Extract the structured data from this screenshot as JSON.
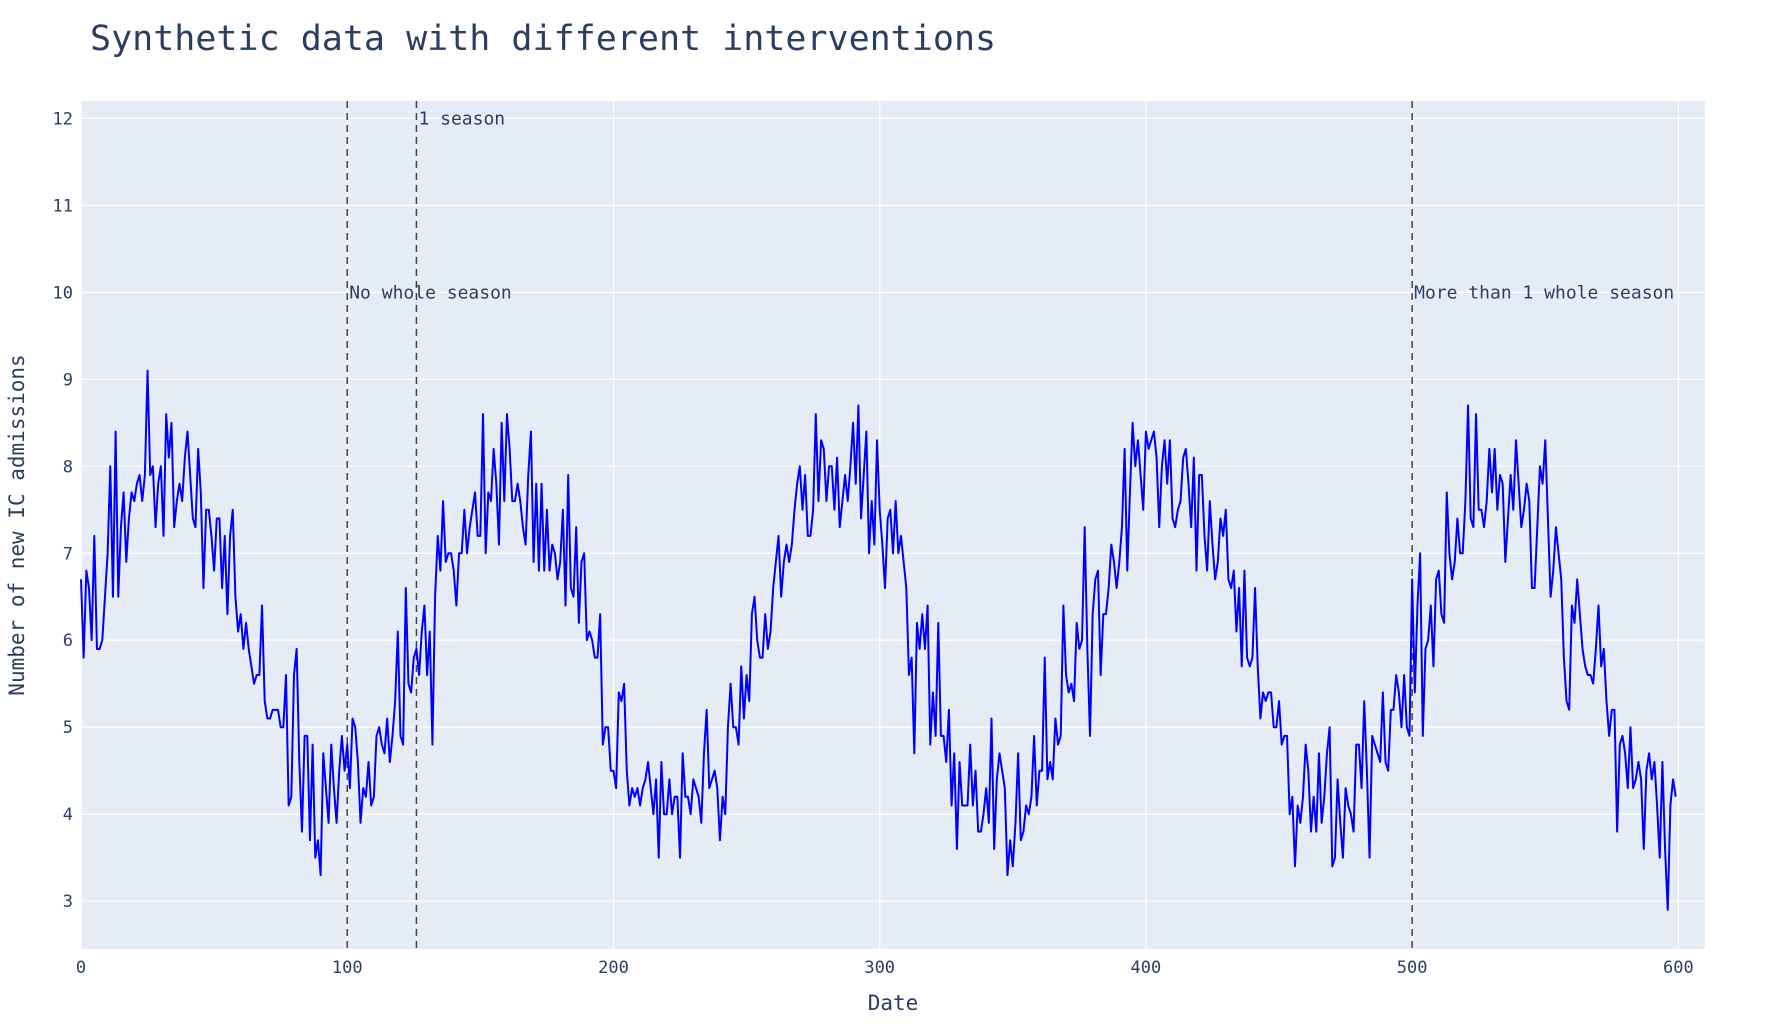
{
  "chart_data": {
    "type": "line",
    "title": "Synthetic data with different interventions",
    "xlabel": "Date",
    "ylabel": "Number of new IC admissions",
    "xlim": [
      0,
      610
    ],
    "ylim": [
      2.45,
      12.2
    ],
    "x_ticks": [
      0,
      100,
      200,
      300,
      400,
      500,
      600
    ],
    "y_ticks": [
      3,
      4,
      5,
      6,
      7,
      8,
      9,
      10,
      11,
      12
    ],
    "grid": true,
    "legend": "none",
    "series": [
      {
        "color": "#0000ff",
        "x_start": 0,
        "x_step": 1,
        "values": [
          6.7,
          5.8,
          6.8,
          6.6,
          6.0,
          7.2,
          5.9,
          5.9,
          6.0,
          6.5,
          7.0,
          8.0,
          6.5,
          8.4,
          6.5,
          7.3,
          7.7,
          6.9,
          7.4,
          7.7,
          7.6,
          7.8,
          7.9,
          7.6,
          7.9,
          9.1,
          7.9,
          8.0,
          7.3,
          7.8,
          8.0,
          7.2,
          8.6,
          8.1,
          8.5,
          7.3,
          7.6,
          7.8,
          7.6,
          8.1,
          8.4,
          7.9,
          7.4,
          7.3,
          8.2,
          7.7,
          6.6,
          7.5,
          7.5,
          7.2,
          6.8,
          7.4,
          7.4,
          6.6,
          7.2,
          6.3,
          7.2,
          7.5,
          6.5,
          6.1,
          6.3,
          5.9,
          6.2,
          5.9,
          5.7,
          5.5,
          5.6,
          5.6,
          6.4,
          5.3,
          5.1,
          5.1,
          5.2,
          5.2,
          5.2,
          5.0,
          5.0,
          5.6,
          4.1,
          4.2,
          5.6,
          5.9,
          4.6,
          3.8,
          4.9,
          4.9,
          3.7,
          4.8,
          3.5,
          3.7,
          3.3,
          4.7,
          4.3,
          3.9,
          4.8,
          4.3,
          3.9,
          4.5,
          4.9,
          4.5,
          4.8,
          4.3,
          5.1,
          5.0,
          4.6,
          3.9,
          4.3,
          4.2,
          4.6,
          4.1,
          4.2,
          4.9,
          5.0,
          4.8,
          4.7,
          5.1,
          4.6,
          4.9,
          5.3,
          6.1,
          4.9,
          4.8,
          6.6,
          5.5,
          5.4,
          5.8,
          5.9,
          5.6,
          6.1,
          6.4,
          5.6,
          6.1,
          4.8,
          6.5,
          7.2,
          6.8,
          7.6,
          6.9,
          7.0,
          7.0,
          6.8,
          6.4,
          7.0,
          7.0,
          7.5,
          7.0,
          7.3,
          7.5,
          7.7,
          7.2,
          7.2,
          8.6,
          7.0,
          7.7,
          7.6,
          8.2,
          7.8,
          7.1,
          8.5,
          7.6,
          8.6,
          8.2,
          7.6,
          7.6,
          7.8,
          7.6,
          7.3,
          7.1,
          7.9,
          8.4,
          6.9,
          7.8,
          6.8,
          7.8,
          6.8,
          7.5,
          6.8,
          7.1,
          7.0,
          6.7,
          6.9,
          7.5,
          6.4,
          7.9,
          6.6,
          6.5,
          7.3,
          6.2,
          6.9,
          7.0,
          6.0,
          6.1,
          6.0,
          5.8,
          5.8,
          6.3,
          4.8,
          5.0,
          5.0,
          4.5,
          4.5,
          4.3,
          5.4,
          5.3,
          5.5,
          4.5,
          4.1,
          4.3,
          4.2,
          4.3,
          4.1,
          4.3,
          4.4,
          4.6,
          4.3,
          4.0,
          4.4,
          3.5,
          4.6,
          4.0,
          4.0,
          4.4,
          4.0,
          4.2,
          4.2,
          3.5,
          4.7,
          4.2,
          4.2,
          4.0,
          4.4,
          4.3,
          4.2,
          3.9,
          4.7,
          5.2,
          4.3,
          4.4,
          4.5,
          4.3,
          3.7,
          4.2,
          4.0,
          5.0,
          5.5,
          5.0,
          5.0,
          4.8,
          5.7,
          5.1,
          5.6,
          5.3,
          6.3,
          6.5,
          6.0,
          5.8,
          5.8,
          6.3,
          5.9,
          6.1,
          6.6,
          6.9,
          7.2,
          6.5,
          6.9,
          7.1,
          6.9,
          7.1,
          7.5,
          7.8,
          8.0,
          7.5,
          7.9,
          7.2,
          7.2,
          7.5,
          8.6,
          7.6,
          8.3,
          8.2,
          7.6,
          8.0,
          8.0,
          7.5,
          8.1,
          7.3,
          7.6,
          7.9,
          7.6,
          8.0,
          8.5,
          7.8,
          8.7,
          7.4,
          7.9,
          8.4,
          7.0,
          7.6,
          7.1,
          8.3,
          7.5,
          7.1,
          6.6,
          7.4,
          7.5,
          7.0,
          7.6,
          7.0,
          7.2,
          6.9,
          6.6,
          5.6,
          5.8,
          4.7,
          6.2,
          5.9,
          6.3,
          5.9,
          6.4,
          4.8,
          5.4,
          4.9,
          6.2,
          4.9,
          4.9,
          4.6,
          5.2,
          4.1,
          4.7,
          3.6,
          4.6,
          4.1,
          4.1,
          4.1,
          4.8,
          4.1,
          4.5,
          3.8,
          3.8,
          4.0,
          4.3,
          3.9,
          5.1,
          3.6,
          4.4,
          4.7,
          4.5,
          4.3,
          3.3,
          3.7,
          3.4,
          3.9,
          4.7,
          3.7,
          3.8,
          4.1,
          4.0,
          4.2,
          4.9,
          4.1,
          4.5,
          4.5,
          5.8,
          4.4,
          4.6,
          4.4,
          5.1,
          4.8,
          4.9,
          6.4,
          5.6,
          5.4,
          5.5,
          5.3,
          6.2,
          5.9,
          6.0,
          7.3,
          5.9,
          4.9,
          6.3,
          6.7,
          6.8,
          5.6,
          6.3,
          6.3,
          6.6,
          7.1,
          6.9,
          6.6,
          6.9,
          7.3,
          8.2,
          6.8,
          7.7,
          8.5,
          8.0,
          8.3,
          7.9,
          7.5,
          8.4,
          8.2,
          8.3,
          8.4,
          8.1,
          7.3,
          8.0,
          8.3,
          7.8,
          8.3,
          7.4,
          7.3,
          7.5,
          7.6,
          8.1,
          8.2,
          7.8,
          7.3,
          8.1,
          6.8,
          7.9,
          7.9,
          7.2,
          6.8,
          7.6,
          7.1,
          6.7,
          6.9,
          7.4,
          7.2,
          7.5,
          6.7,
          6.6,
          6.8,
          6.1,
          6.6,
          5.7,
          6.8,
          5.8,
          5.7,
          5.8,
          6.6,
          5.7,
          5.1,
          5.4,
          5.3,
          5.4,
          5.4,
          5.0,
          5.0,
          5.3,
          4.8,
          4.9,
          4.9,
          4.0,
          4.2,
          3.4,
          4.1,
          3.9,
          4.2,
          4.8,
          4.5,
          3.8,
          4.2,
          3.8,
          4.7,
          3.9,
          4.2,
          4.7,
          5.0,
          3.4,
          3.5,
          4.4,
          3.9,
          3.5,
          4.3,
          4.1,
          4.0,
          3.8,
          4.8,
          4.8,
          4.3,
          5.3,
          4.5,
          3.5,
          4.9,
          4.8,
          4.7,
          4.6,
          5.4,
          4.6,
          4.5,
          5.2,
          5.2,
          5.6,
          5.4,
          5.0,
          5.6,
          5.0,
          4.9,
          6.7,
          5.4,
          6.4,
          7.0,
          4.9,
          5.9,
          6.0,
          6.4,
          5.7,
          6.7,
          6.8,
          6.3,
          6.2,
          7.7,
          7.0,
          6.7,
          6.9,
          7.4,
          7.0,
          7.0,
          7.6,
          8.7,
          7.4,
          7.3,
          8.6,
          7.5,
          7.5,
          7.3,
          7.6,
          8.2,
          7.7,
          8.2,
          7.5,
          7.9,
          7.8,
          6.9,
          7.4,
          7.9,
          7.5,
          8.3,
          7.8,
          7.3,
          7.5,
          7.8,
          7.6,
          6.6,
          6.6,
          7.3,
          8.0,
          7.8,
          8.3,
          7.4,
          6.5,
          6.8,
          7.3,
          7.0,
          6.7,
          5.8,
          5.3,
          5.2,
          6.4,
          6.2,
          6.7,
          6.3,
          5.9,
          5.7,
          5.6,
          5.6,
          5.5,
          5.9,
          6.4,
          5.7,
          5.9,
          5.3,
          4.9,
          5.2,
          5.2,
          3.8,
          4.8,
          4.9,
          4.7,
          4.3,
          5.0,
          4.3,
          4.4,
          4.6,
          4.4,
          3.6,
          4.5,
          4.7,
          4.4,
          4.6,
          4.1,
          3.5,
          4.6,
          3.6,
          2.9,
          4.1,
          4.4,
          4.2
        ]
      }
    ],
    "vlines": [
      {
        "x": 100
      },
      {
        "x": 126
      },
      {
        "x": 500
      }
    ],
    "annotations": [
      {
        "text": "No whole season",
        "x": 100,
        "y": 10
      },
      {
        "text": "1 season",
        "x": 126,
        "y": 12
      },
      {
        "text": "More than 1 whole season",
        "x": 500,
        "y": 10
      }
    ]
  }
}
